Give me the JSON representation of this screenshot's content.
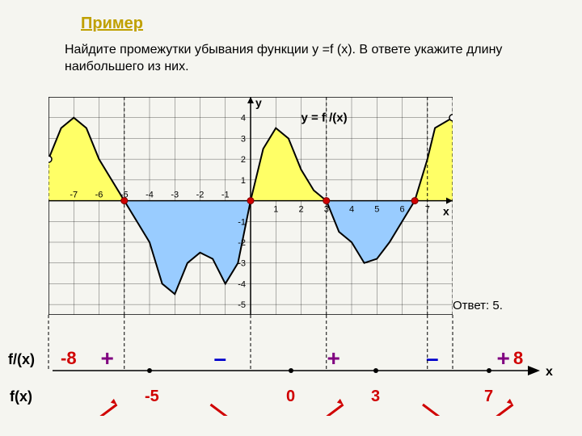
{
  "title": "Пример",
  "problem_line1": "Найдите промежутки убывания функции у =f (x). В ответе укажите длину",
  "problem_line2": "наибольшего из них.",
  "answer": "Ответ: 5.",
  "chart": {
    "xmin": -8,
    "xmax": 8,
    "ymin": -5.5,
    "ymax": 5,
    "x_ticks": [
      -7,
      -6,
      -5,
      -4,
      -3,
      -2,
      -1,
      1,
      2,
      3,
      4,
      5,
      6,
      7
    ],
    "y_ticks_pos": [
      1,
      2,
      3,
      4
    ],
    "y_ticks_neg": [
      -1,
      -2,
      -3,
      -4,
      -5
    ],
    "y_label": "y",
    "x_label": "x",
    "curve_label": "y = f /(x)",
    "curve_color": "#000000",
    "fill_above": "#ffff66",
    "fill_below": "#99ccff",
    "grid_color": "#000000",
    "curve_points": [
      [
        -8,
        2
      ],
      [
        -7.5,
        3.5
      ],
      [
        -7,
        4
      ],
      [
        -6.5,
        3.5
      ],
      [
        -6,
        2
      ],
      [
        -5.5,
        1
      ],
      [
        -5,
        0
      ],
      [
        -4.5,
        -1
      ],
      [
        -4,
        -2
      ],
      [
        -3.5,
        -4
      ],
      [
        -3,
        -4.5
      ],
      [
        -2.5,
        -3
      ],
      [
        -2,
        -2.5
      ],
      [
        -1.5,
        -2.8
      ],
      [
        -1,
        -4
      ],
      [
        -0.5,
        -3
      ],
      [
        0,
        0
      ],
      [
        0.5,
        2.5
      ],
      [
        1,
        3.5
      ],
      [
        1.5,
        3
      ],
      [
        2,
        1.5
      ],
      [
        2.5,
        0.5
      ],
      [
        3,
        0
      ],
      [
        3.5,
        -1.5
      ],
      [
        4,
        -2
      ],
      [
        4.5,
        -3
      ],
      [
        5,
        -2.8
      ],
      [
        5.5,
        -2
      ],
      [
        6,
        -1
      ],
      [
        6.5,
        0
      ],
      [
        7,
        2
      ],
      [
        7.3,
        3.5
      ],
      [
        8,
        4
      ]
    ],
    "marker_open": [
      [
        -8,
        2
      ],
      [
        8,
        4
      ]
    ],
    "marker_red": [
      [
        -5,
        0
      ],
      [
        0,
        0
      ],
      [
        3,
        0
      ],
      [
        6.5,
        0
      ]
    ],
    "dashed_verticals": [
      -8,
      -5,
      0,
      3,
      7,
      8
    ],
    "tick_fontsize": 11
  },
  "sign_line": {
    "deriv_label": "f/(x)",
    "func_label": "f(x)",
    "left_end": "-8",
    "right_end": "8",
    "points": [
      "-5",
      "0",
      "3",
      "7"
    ],
    "signs_top": [
      "+",
      "–",
      "+",
      "–",
      "+"
    ],
    "sign_colors": [
      "#800080",
      "#0000cc",
      "#800080",
      "#0000cc",
      "#800080"
    ],
    "arrow_color": "#d00000",
    "x_label": "x"
  }
}
